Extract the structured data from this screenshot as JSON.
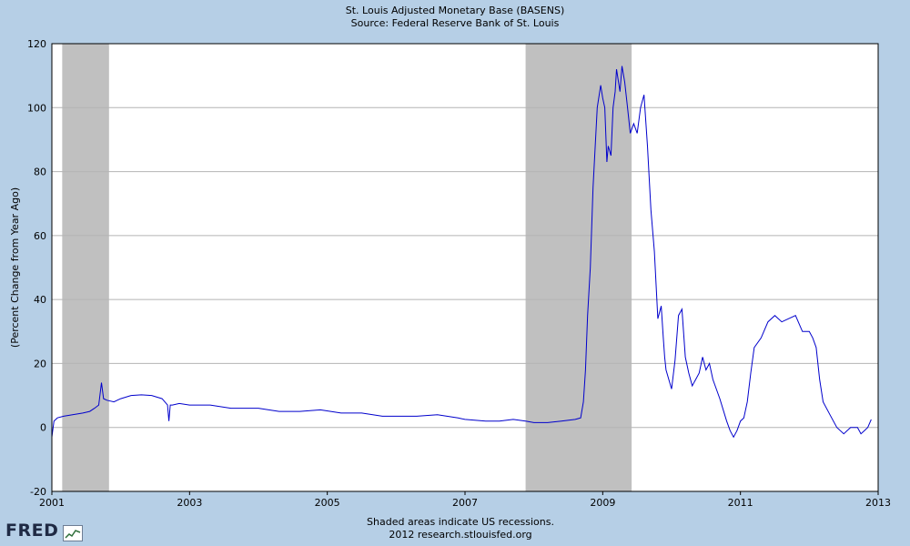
{
  "chart_data": {
    "type": "line",
    "title": "St. Louis Adjusted Monetary Base (BASENS)",
    "subtitle": "Source: Federal Reserve Bank of St. Louis",
    "xlabel": "",
    "ylabel": "(Percent Change from Year Ago)",
    "xlim": [
      2001,
      2013
    ],
    "ylim": [
      -20,
      120
    ],
    "x_ticks": [
      "2001",
      "2003",
      "2005",
      "2007",
      "2009",
      "2011",
      "2013"
    ],
    "y_ticks": [
      "-20",
      "0",
      "20",
      "40",
      "60",
      "80",
      "100",
      "120"
    ],
    "grid": true,
    "line_color": "#0000cc",
    "recessions": [
      {
        "start": 2001.15,
        "end": 2001.83
      },
      {
        "start": 2007.88,
        "end": 2009.42
      }
    ],
    "series": [
      {
        "name": "BASENS",
        "x": [
          2001.0,
          2001.03,
          2001.08,
          2001.17,
          2001.3,
          2001.45,
          2001.55,
          2001.62,
          2001.68,
          2001.72,
          2001.75,
          2001.8,
          2001.9,
          2002.0,
          2002.15,
          2002.3,
          2002.45,
          2002.6,
          2002.68,
          2002.7,
          2002.72,
          2002.75,
          2002.85,
          2003.0,
          2003.3,
          2003.6,
          2004.0,
          2004.3,
          2004.6,
          2004.9,
          2005.2,
          2005.5,
          2005.8,
          2006.0,
          2006.3,
          2006.6,
          2006.9,
          2007.0,
          2007.3,
          2007.5,
          2007.7,
          2007.88,
          2008.0,
          2008.2,
          2008.4,
          2008.6,
          2008.68,
          2008.72,
          2008.75,
          2008.78,
          2008.82,
          2008.86,
          2008.92,
          2008.97,
          2009.0,
          2009.03,
          2009.06,
          2009.08,
          2009.12,
          2009.15,
          2009.18,
          2009.2,
          2009.25,
          2009.28,
          2009.32,
          2009.36,
          2009.4,
          2009.45,
          2009.5,
          2009.55,
          2009.6,
          2009.65,
          2009.7,
          2009.75,
          2009.8,
          2009.85,
          2009.88,
          2009.9,
          2009.92,
          2010.0,
          2010.05,
          2010.1,
          2010.15,
          2010.2,
          2010.25,
          2010.3,
          2010.35,
          2010.4,
          2010.45,
          2010.5,
          2010.55,
          2010.6,
          2010.7,
          2010.8,
          2010.85,
          2010.9,
          2010.95,
          2011.0,
          2011.05,
          2011.1,
          2011.15,
          2011.2,
          2011.3,
          2011.4,
          2011.5,
          2011.55,
          2011.6,
          2011.7,
          2011.8,
          2011.9,
          2011.95,
          2012.0,
          2012.05,
          2012.1,
          2012.15,
          2012.2,
          2012.3,
          2012.4,
          2012.5,
          2012.6,
          2012.7,
          2012.75,
          2012.8,
          2012.85,
          2012.9
        ],
        "values": [
          -3,
          2,
          3,
          3.5,
          4,
          4.5,
          5,
          6,
          7,
          14,
          9,
          8.5,
          8,
          9,
          10,
          10.2,
          10,
          9,
          7,
          2,
          7,
          7,
          7.5,
          7,
          7,
          6,
          6,
          5,
          5,
          5.5,
          4.5,
          4.5,
          3.5,
          3.5,
          3.5,
          4,
          3,
          2.5,
          2,
          2,
          2.5,
          2,
          1.5,
          1.5,
          2,
          2.5,
          3,
          8,
          18,
          35,
          50,
          75,
          100,
          107,
          103,
          100,
          83,
          88,
          85,
          100,
          105,
          112,
          105,
          113,
          108,
          100,
          92,
          95,
          92,
          100,
          104,
          88,
          68,
          55,
          34,
          38,
          28,
          22,
          18,
          12,
          21,
          35,
          37,
          22,
          17,
          13,
          15,
          17,
          22,
          18,
          20,
          15,
          9,
          2,
          -1,
          -3,
          -1,
          2,
          3,
          8,
          17,
          25,
          28,
          33,
          35,
          34,
          33,
          34,
          35,
          30,
          30,
          30,
          28,
          25,
          15,
          8,
          4,
          0,
          -2,
          0,
          0,
          -2,
          -1,
          0,
          2.5
        ]
      }
    ],
    "footnote": "Shaded areas indicate US recessions.",
    "credit": "2012 research.stlouisfed.org",
    "logo_text": "FRED"
  }
}
